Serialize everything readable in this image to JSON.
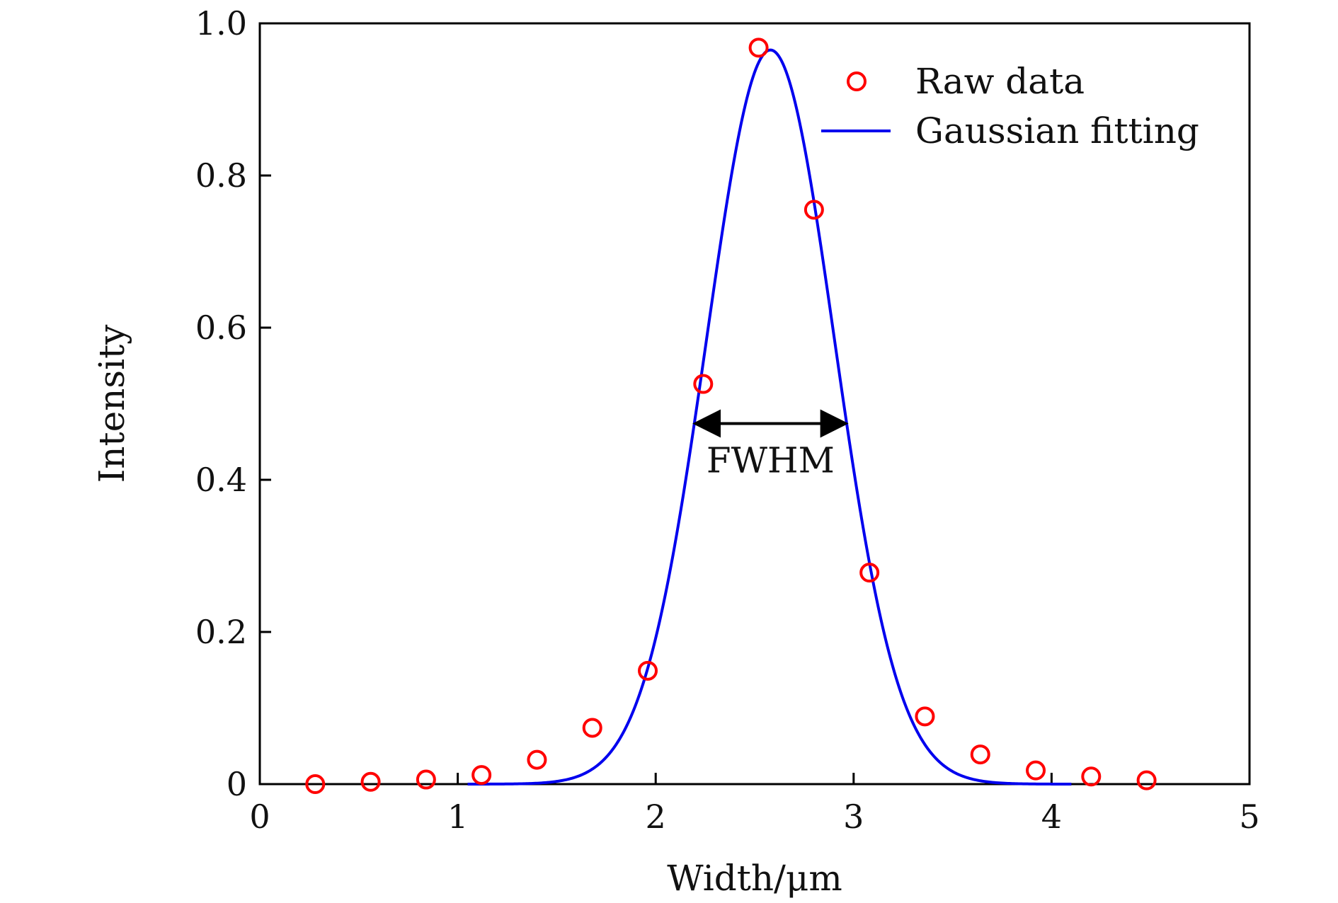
{
  "chart_data": {
    "type": "scatter",
    "title": "",
    "xlabel": "Width/μm",
    "ylabel": "Intensity",
    "xlim": [
      0,
      5
    ],
    "ylim": [
      0,
      1.0
    ],
    "xticks": [
      0,
      1,
      2,
      3,
      4,
      5
    ],
    "xtick_labels": [
      "0",
      "1",
      "2",
      "3",
      "4",
      "5"
    ],
    "yticks": [
      0,
      0.2,
      0.4,
      0.6,
      0.8,
      1.0
    ],
    "ytick_labels": [
      "0",
      "0.2",
      "0.4",
      "0.6",
      "0.8",
      "1.0"
    ],
    "grid": false,
    "legend_position": "top-right",
    "series": [
      {
        "name": "Raw data",
        "kind": "scatter",
        "marker": "open-circle",
        "color": "#ff0000",
        "x": [
          0.28,
          0.56,
          0.84,
          1.12,
          1.4,
          1.68,
          1.96,
          2.24,
          2.52,
          2.8,
          3.08,
          3.36,
          3.64,
          3.92,
          4.2,
          4.48
        ],
        "y": [
          0.0,
          0.003,
          0.006,
          0.012,
          0.032,
          0.074,
          0.149,
          0.526,
          0.968,
          0.755,
          0.278,
          0.089,
          0.039,
          0.018,
          0.01,
          0.005
        ]
      },
      {
        "name": "Gaussian fitting",
        "kind": "line",
        "color": "#0000ee",
        "model": "gaussian",
        "amplitude": 0.965,
        "center": 2.58,
        "fwhm": 0.76,
        "x_range": [
          1.05,
          4.1
        ]
      }
    ],
    "annotations": [
      {
        "text": "FWHM",
        "type": "double-arrow",
        "x_start": 2.2,
        "x_end": 2.96,
        "y": 0.474,
        "label_y": 0.41
      }
    ]
  }
}
